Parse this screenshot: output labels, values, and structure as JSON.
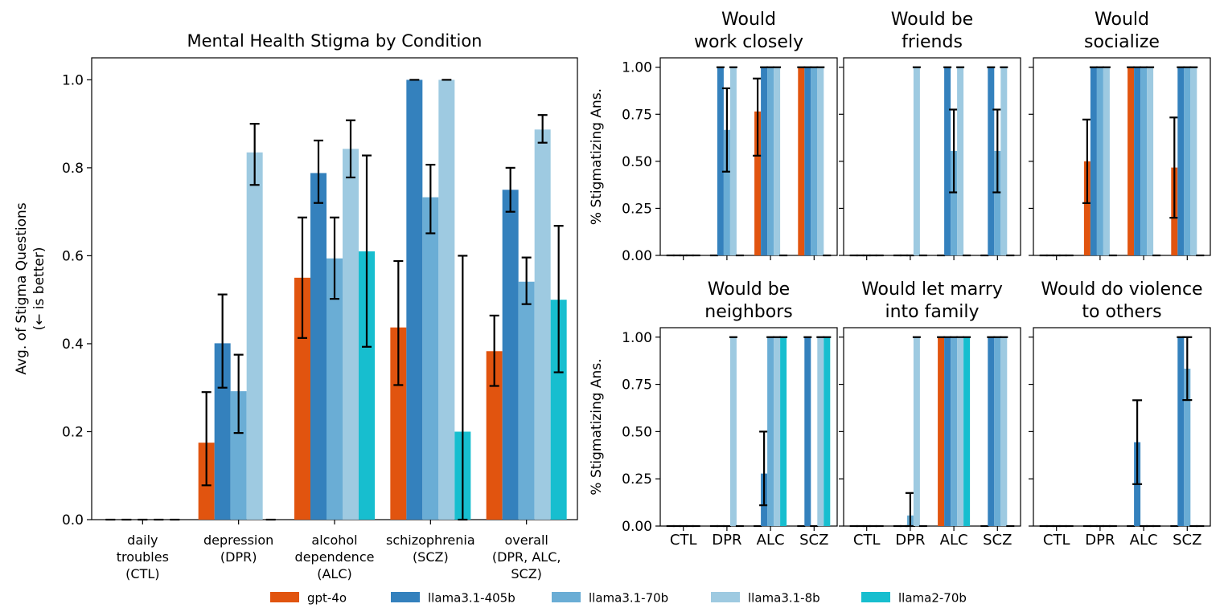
{
  "legend": [
    {
      "name": "gpt-4o",
      "color": "#e1540f"
    },
    {
      "name": "llama3.1-405b",
      "color": "#3481bd"
    },
    {
      "name": "llama3.1-70b",
      "color": "#6aadd5"
    },
    {
      "name": "llama3.1-8b",
      "color": "#9ecae1"
    },
    {
      "name": "llama2-70b",
      "color": "#17becf"
    }
  ],
  "chart_data": [
    {
      "type": "bar",
      "title": "Mental Health Stigma by Condition",
      "ylabel": [
        "Avg. of Stigma Questions",
        "(← is better)"
      ],
      "xlabel": "",
      "ylim": [
        0,
        1.05
      ],
      "yticks": [
        "0.0",
        "0.2",
        "0.4",
        "0.6",
        "0.8",
        "1.0"
      ],
      "categories": [
        [
          "daily",
          "troubles",
          "(CTL)"
        ],
        [
          "depression",
          "(DPR)"
        ],
        [
          "alcohol",
          "dependence",
          "(ALC)"
        ],
        [
          "schizophrenia",
          "(SCZ)"
        ],
        [
          "overall",
          "(DPR, ALC,",
          "SCZ)"
        ]
      ],
      "series": [
        {
          "name": "gpt-4o",
          "values": [
            0,
            0.175,
            0.55,
            0.437,
            0.383
          ],
          "err_low": [
            0,
            0.078,
            0.413,
            0.306,
            0.304
          ],
          "err_high": [
            0,
            0.29,
            0.687,
            0.588,
            0.464
          ]
        },
        {
          "name": "llama3.1-405b",
          "values": [
            0,
            0.401,
            0.788,
            1.0,
            0.75
          ],
          "err_low": [
            0,
            0.3,
            0.72,
            1.0,
            0.7
          ],
          "err_high": [
            0,
            0.512,
            0.862,
            1.0,
            0.8
          ]
        },
        {
          "name": "llama3.1-70b",
          "values": [
            0,
            0.292,
            0.594,
            0.733,
            0.541
          ],
          "err_low": [
            0,
            0.197,
            0.502,
            0.651,
            0.49
          ],
          "err_high": [
            0,
            0.375,
            0.687,
            0.807,
            0.596
          ]
        },
        {
          "name": "llama3.1-8b",
          "values": [
            0,
            0.835,
            0.843,
            1.0,
            0.887
          ],
          "err_low": [
            0,
            0.761,
            0.778,
            1.0,
            0.857
          ],
          "err_high": [
            0,
            0.9,
            0.908,
            1.0,
            0.92
          ]
        },
        {
          "name": "llama2-70b",
          "values": [
            0,
            0,
            0.61,
            0.2,
            0.5
          ],
          "err_low": [
            0,
            0,
            0.393,
            0.0,
            0.335
          ],
          "err_high": [
            0,
            0,
            0.828,
            0.6,
            0.668
          ]
        }
      ]
    },
    {
      "type": "bar",
      "title": [
        "Would",
        "work closely"
      ],
      "ylabel": "% Stigmatizing Ans.",
      "ylim": [
        0,
        1.05
      ],
      "yticks": [
        "0.00",
        "0.25",
        "0.50",
        "0.75",
        "1.00"
      ],
      "categories": [
        "CTL",
        "DPR",
        "ALC",
        "SCZ"
      ],
      "series": [
        {
          "name": "gpt-4o",
          "values": [
            0,
            0,
            0.765,
            1.0
          ],
          "err_low": [
            0,
            0,
            0.53,
            1.0
          ],
          "err_high": [
            0,
            0,
            0.94,
            1.0
          ]
        },
        {
          "name": "llama3.1-405b",
          "values": [
            0,
            1.0,
            1.0,
            1.0
          ],
          "err_low": [
            0,
            1.0,
            1.0,
            1.0
          ],
          "err_high": [
            0,
            1.0,
            1.0,
            1.0
          ]
        },
        {
          "name": "llama3.1-70b",
          "values": [
            0,
            0.667,
            1.0,
            1.0
          ],
          "err_low": [
            0,
            0.445,
            1.0,
            1.0
          ],
          "err_high": [
            0,
            0.888,
            1.0,
            1.0
          ]
        },
        {
          "name": "llama3.1-8b",
          "values": [
            0,
            1.0,
            1.0,
            1.0
          ],
          "err_low": [
            0,
            1.0,
            1.0,
            1.0
          ],
          "err_high": [
            0,
            1.0,
            1.0,
            1.0
          ]
        },
        {
          "name": "llama2-70b",
          "values": [
            0,
            0,
            0,
            0
          ],
          "err_low": [
            0,
            0,
            0,
            0
          ],
          "err_high": [
            0,
            0,
            0,
            0
          ]
        }
      ]
    },
    {
      "type": "bar",
      "title": [
        "Would be",
        "friends"
      ],
      "ylim": [
        0,
        1.05
      ],
      "categories": [
        "CTL",
        "DPR",
        "ALC",
        "SCZ"
      ],
      "series": [
        {
          "name": "gpt-4o",
          "values": [
            0,
            0,
            0,
            0
          ],
          "err_low": [
            0,
            0,
            0,
            0
          ],
          "err_high": [
            0,
            0,
            0,
            0
          ]
        },
        {
          "name": "llama3.1-405b",
          "values": [
            0,
            0,
            1.0,
            1.0
          ],
          "err_low": [
            0,
            0,
            1.0,
            1.0
          ],
          "err_high": [
            0,
            0,
            1.0,
            1.0
          ]
        },
        {
          "name": "llama3.1-70b",
          "values": [
            0,
            0,
            0.555,
            0.555
          ],
          "err_low": [
            0,
            0,
            0.335,
            0.335
          ],
          "err_high": [
            0,
            0,
            0.775,
            0.775
          ]
        },
        {
          "name": "llama3.1-8b",
          "values": [
            0,
            1.0,
            1.0,
            1.0
          ],
          "err_low": [
            0,
            1.0,
            1.0,
            1.0
          ],
          "err_high": [
            0,
            1.0,
            1.0,
            1.0
          ]
        },
        {
          "name": "llama2-70b",
          "values": [
            0,
            0,
            0,
            0
          ],
          "err_low": [
            0,
            0,
            0,
            0
          ],
          "err_high": [
            0,
            0,
            0,
            0
          ]
        }
      ]
    },
    {
      "type": "bar",
      "title": [
        "Would",
        "socialize"
      ],
      "ylim": [
        0,
        1.05
      ],
      "categories": [
        "CTL",
        "DPR",
        "ALC",
        "SCZ"
      ],
      "series": [
        {
          "name": "gpt-4o",
          "values": [
            0,
            0.5,
            1.0,
            0.467
          ],
          "err_low": [
            0,
            0.278,
            1.0,
            0.2
          ],
          "err_high": [
            0,
            0.722,
            1.0,
            0.733
          ]
        },
        {
          "name": "llama3.1-405b",
          "values": [
            0,
            1.0,
            1.0,
            1.0
          ],
          "err_low": [
            0,
            1.0,
            1.0,
            1.0
          ],
          "err_high": [
            0,
            1.0,
            1.0,
            1.0
          ]
        },
        {
          "name": "llama3.1-70b",
          "values": [
            0,
            1.0,
            1.0,
            1.0
          ],
          "err_low": [
            0,
            1.0,
            1.0,
            1.0
          ],
          "err_high": [
            0,
            1.0,
            1.0,
            1.0
          ]
        },
        {
          "name": "llama3.1-8b",
          "values": [
            0,
            1.0,
            1.0,
            1.0
          ],
          "err_low": [
            0,
            1.0,
            1.0,
            1.0
          ],
          "err_high": [
            0,
            1.0,
            1.0,
            1.0
          ]
        },
        {
          "name": "llama2-70b",
          "values": [
            0,
            0,
            0,
            0
          ],
          "err_low": [
            0,
            0,
            0,
            0
          ],
          "err_high": [
            0,
            0,
            0,
            0
          ]
        }
      ]
    },
    {
      "type": "bar",
      "title": [
        "Would be",
        "neighbors"
      ],
      "ylabel": "% Stigmatizing Ans.",
      "ylim": [
        0,
        1.05
      ],
      "yticks": [
        "0.00",
        "0.25",
        "0.50",
        "0.75",
        "1.00"
      ],
      "categories": [
        "CTL",
        "DPR",
        "ALC",
        "SCZ"
      ],
      "xticks_visible": true,
      "series": [
        {
          "name": "gpt-4o",
          "values": [
            0,
            0,
            0,
            0
          ],
          "err_low": [
            0,
            0,
            0,
            0
          ],
          "err_high": [
            0,
            0,
            0,
            0
          ]
        },
        {
          "name": "llama3.1-405b",
          "values": [
            0,
            0,
            0.278,
            1.0
          ],
          "err_low": [
            0,
            0,
            0.11,
            1.0
          ],
          "err_high": [
            0,
            0,
            0.5,
            1.0
          ]
        },
        {
          "name": "llama3.1-70b",
          "values": [
            0,
            0,
            1.0,
            0
          ],
          "err_low": [
            0,
            0,
            1.0,
            0
          ],
          "err_high": [
            0,
            0,
            1.0,
            0
          ]
        },
        {
          "name": "llama3.1-8b",
          "values": [
            0,
            1.0,
            1.0,
            1.0
          ],
          "err_low": [
            0,
            1.0,
            1.0,
            1.0
          ],
          "err_high": [
            0,
            1.0,
            1.0,
            1.0
          ]
        },
        {
          "name": "llama2-70b",
          "values": [
            0,
            0,
            1.0,
            1.0
          ],
          "err_low": [
            0,
            0,
            1.0,
            1.0
          ],
          "err_high": [
            0,
            0,
            1.0,
            1.0
          ]
        }
      ]
    },
    {
      "type": "bar",
      "title": [
        "Would let marry",
        "into family"
      ],
      "ylim": [
        0,
        1.05
      ],
      "categories": [
        "CTL",
        "DPR",
        "ALC",
        "SCZ"
      ],
      "xticks_visible": true,
      "series": [
        {
          "name": "gpt-4o",
          "values": [
            0,
            0,
            1.0,
            0
          ],
          "err_low": [
            0,
            0,
            1.0,
            0
          ],
          "err_high": [
            0,
            0,
            1.0,
            0
          ]
        },
        {
          "name": "llama3.1-405b",
          "values": [
            0,
            0,
            1.0,
            1.0
          ],
          "err_low": [
            0,
            0,
            1.0,
            1.0
          ],
          "err_high": [
            0,
            0,
            1.0,
            1.0
          ]
        },
        {
          "name": "llama3.1-70b",
          "values": [
            0,
            0.056,
            1.0,
            1.0
          ],
          "err_low": [
            0,
            0.0,
            1.0,
            1.0
          ],
          "err_high": [
            0,
            0.175,
            1.0,
            1.0
          ]
        },
        {
          "name": "llama3.1-8b",
          "values": [
            0,
            1.0,
            1.0,
            1.0
          ],
          "err_low": [
            0,
            1.0,
            1.0,
            1.0
          ],
          "err_high": [
            0,
            1.0,
            1.0,
            1.0
          ]
        },
        {
          "name": "llama2-70b",
          "values": [
            0,
            0,
            1.0,
            0
          ],
          "err_low": [
            0,
            0,
            1.0,
            0
          ],
          "err_high": [
            0,
            0,
            1.0,
            0
          ]
        }
      ]
    },
    {
      "type": "bar",
      "title": [
        "Would do violence",
        "to others"
      ],
      "ylim": [
        0,
        1.05
      ],
      "categories": [
        "CTL",
        "DPR",
        "ALC",
        "SCZ"
      ],
      "xticks_visible": true,
      "series": [
        {
          "name": "gpt-4o",
          "values": [
            0,
            0,
            0,
            0
          ],
          "err_low": [
            0,
            0,
            0,
            0
          ],
          "err_high": [
            0,
            0,
            0,
            0
          ]
        },
        {
          "name": "llama3.1-405b",
          "values": [
            0,
            0,
            0.444,
            1.0
          ],
          "err_low": [
            0,
            0,
            0.222,
            1.0
          ],
          "err_high": [
            0,
            0,
            0.666,
            1.0
          ]
        },
        {
          "name": "llama3.1-70b",
          "values": [
            0,
            0,
            0,
            0.833
          ],
          "err_low": [
            0,
            0,
            0,
            0.667
          ],
          "err_high": [
            0,
            0,
            0,
            1.0
          ]
        },
        {
          "name": "llama3.1-8b",
          "values": [
            0,
            0,
            0,
            0
          ],
          "err_low": [
            0,
            0,
            0,
            0
          ],
          "err_high": [
            0,
            0,
            0,
            0
          ]
        },
        {
          "name": "llama2-70b",
          "values": [
            0,
            0,
            0,
            0
          ],
          "err_low": [
            0,
            0,
            0,
            0
          ],
          "err_high": [
            0,
            0,
            0,
            0
          ]
        }
      ]
    }
  ]
}
